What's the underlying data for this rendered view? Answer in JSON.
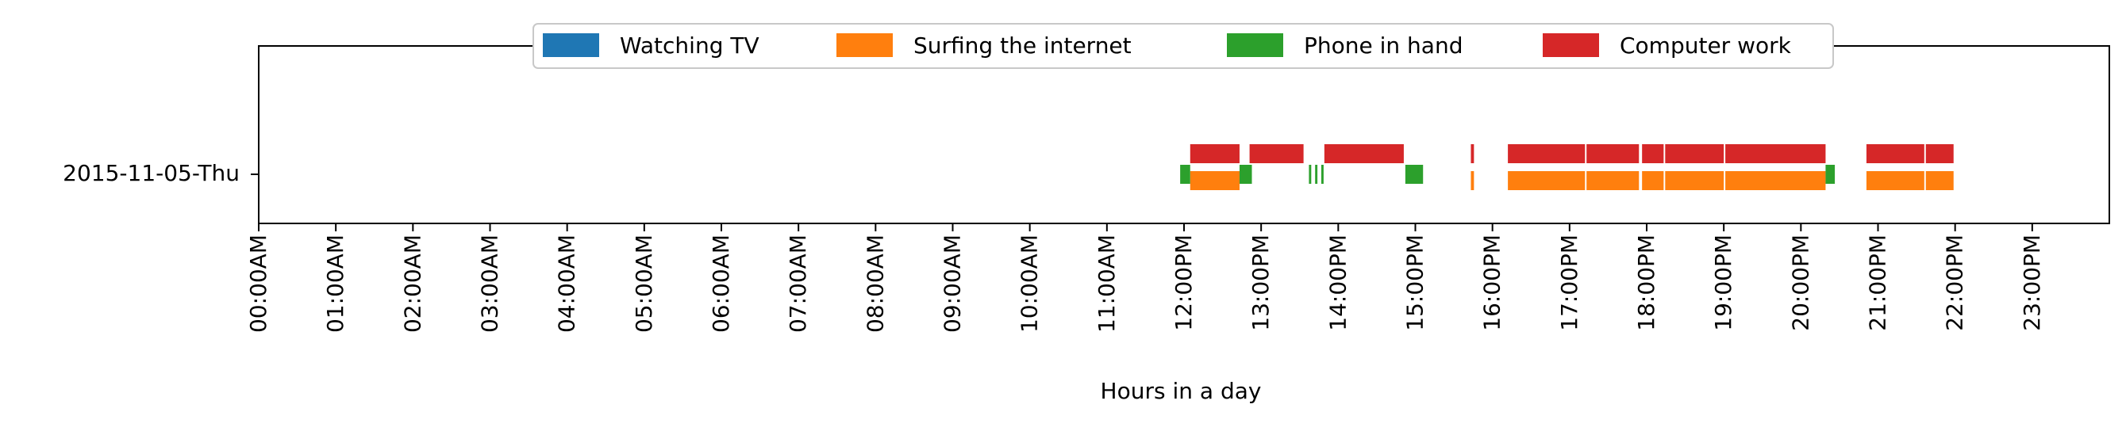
{
  "chart_data": {
    "type": "timeline",
    "xlabel": "Hours in a day",
    "xlim": [
      0,
      24
    ],
    "x_ticks": [
      "00:00AM",
      "01:00AM",
      "02:00AM",
      "03:00AM",
      "04:00AM",
      "05:00AM",
      "06:00AM",
      "07:00AM",
      "08:00AM",
      "09:00AM",
      "10:00AM",
      "11:00AM",
      "12:00PM",
      "13:00PM",
      "14:00PM",
      "15:00PM",
      "16:00PM",
      "17:00PM",
      "18:00PM",
      "19:00PM",
      "20:00PM",
      "21:00PM",
      "22:00PM",
      "23:00PM"
    ],
    "y_categories": [
      "2015-11-05-Thu"
    ],
    "legend_position": "top-center",
    "series": [
      {
        "name": "Watching TV",
        "color": "#1f77b4",
        "intervals": []
      },
      {
        "name": "Surfing the internet",
        "color": "#ff7f0e",
        "intervals": [
          [
            12.08,
            12.72
          ],
          [
            15.72,
            15.76
          ],
          [
            16.2,
            17.2
          ],
          [
            17.22,
            17.9
          ],
          [
            17.94,
            18.22
          ],
          [
            18.24,
            19.0
          ],
          [
            19.02,
            20.32
          ],
          [
            20.85,
            21.6
          ],
          [
            21.62,
            21.98
          ]
        ]
      },
      {
        "name": "Phone in hand",
        "color": "#2ca02c",
        "intervals": [
          [
            11.95,
            12.08
          ],
          [
            12.72,
            12.88
          ],
          [
            13.62,
            13.65
          ],
          [
            13.7,
            13.73
          ],
          [
            13.78,
            13.81
          ],
          [
            14.87,
            15.1
          ],
          [
            20.32,
            20.44
          ]
        ]
      },
      {
        "name": "Computer work",
        "color": "#d62728",
        "intervals": [
          [
            12.08,
            12.72
          ],
          [
            12.85,
            13.55
          ],
          [
            13.82,
            14.85
          ],
          [
            15.72,
            15.76
          ],
          [
            16.2,
            17.2
          ],
          [
            17.22,
            17.9
          ],
          [
            17.94,
            18.22
          ],
          [
            18.24,
            19.0
          ],
          [
            19.02,
            20.32
          ],
          [
            20.85,
            21.6
          ],
          [
            21.62,
            21.98
          ]
        ]
      }
    ]
  }
}
